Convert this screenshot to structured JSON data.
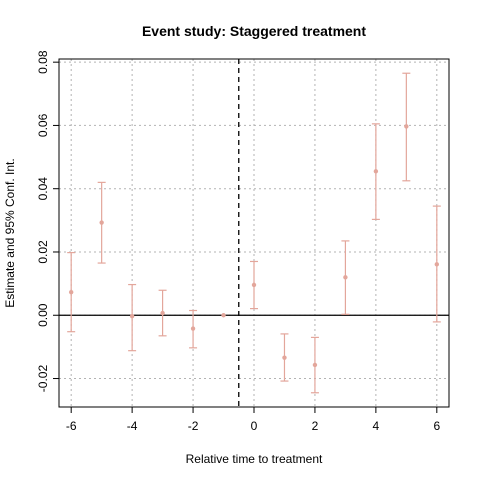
{
  "chart_data": {
    "type": "scatter",
    "title": "Event study: Staggered treatment",
    "xlabel": "Relative time to treatment",
    "ylabel": "Estimate and 95% Conf. Int.",
    "xlim": [
      -6.4,
      6.4
    ],
    "ylim": [
      -0.029,
      0.081
    ],
    "x_ticks": [
      -6,
      -4,
      -2,
      0,
      2,
      4,
      6
    ],
    "x_tick_labels": [
      "-6",
      "-4",
      "-2",
      "0",
      "2",
      "4",
      "6"
    ],
    "y_ticks": [
      -0.02,
      0.0,
      0.02,
      0.04,
      0.06,
      0.08
    ],
    "y_tick_labels": [
      "-0.02",
      "0.00",
      "0.02",
      "0.04",
      "0.06",
      "0.08"
    ],
    "grid": true,
    "reference_lines": {
      "horizontal_y": 0,
      "vertical_dashed_x": -0.5
    },
    "series": [
      {
        "color": "#E3A69B",
        "points": [
          {
            "x": -6,
            "y": 0.0073,
            "ci_low": -0.0052,
            "ci_high": 0.0198
          },
          {
            "x": -5,
            "y": 0.0293,
            "ci_low": 0.0165,
            "ci_high": 0.042
          },
          {
            "x": -4,
            "y": -0.0003,
            "ci_low": -0.0112,
            "ci_high": 0.0097
          },
          {
            "x": -3,
            "y": 0.0007,
            "ci_low": -0.0065,
            "ci_high": 0.0079
          },
          {
            "x": -2,
            "y": -0.0042,
            "ci_low": -0.0103,
            "ci_high": 0.0015
          },
          {
            "x": -1,
            "y": 0.0,
            "ci_low": 0.0,
            "ci_high": 0.0
          },
          {
            "x": 0,
            "y": 0.0096,
            "ci_low": 0.0021,
            "ci_high": 0.017
          },
          {
            "x": 1,
            "y": -0.0134,
            "ci_low": -0.0208,
            "ci_high": -0.0059
          },
          {
            "x": 2,
            "y": -0.0157,
            "ci_low": -0.0245,
            "ci_high": -0.007
          },
          {
            "x": 3,
            "y": 0.012,
            "ci_low": 0.0003,
            "ci_high": 0.0235
          },
          {
            "x": 4,
            "y": 0.0455,
            "ci_low": 0.0303,
            "ci_high": 0.0605
          },
          {
            "x": 5,
            "y": 0.0597,
            "ci_low": 0.0425,
            "ci_high": 0.0765
          },
          {
            "x": 6,
            "y": 0.0161,
            "ci_low": -0.0021,
            "ci_high": 0.0345
          }
        ]
      }
    ]
  }
}
